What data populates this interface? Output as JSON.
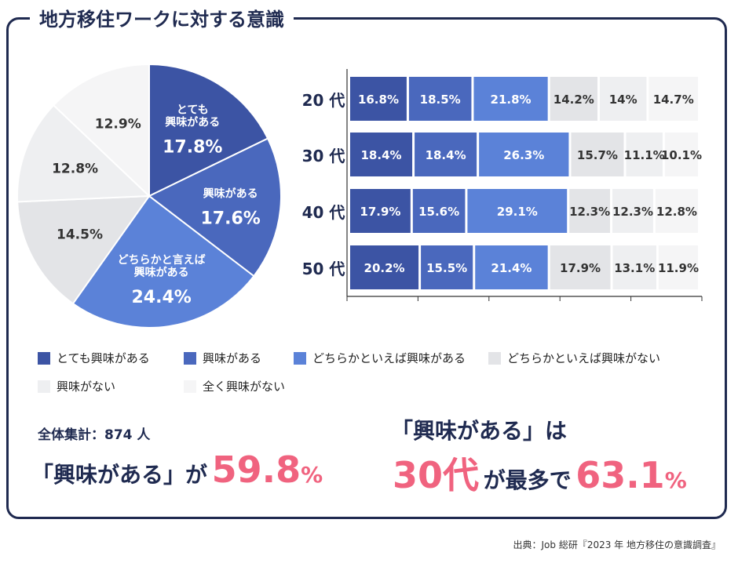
{
  "title": "地方移住ワークに対する意識",
  "colors": {
    "very_interested": "#3c54a4",
    "interested": "#4a68bd",
    "somewhat_interested": "#5b82d8",
    "somewhat_not": "#e3e4e7",
    "not_interested": "#eeeff1",
    "not_at_all": "#f5f5f6",
    "navy": "#1f2a50",
    "pink": "#f0637f"
  },
  "chart_data": [
    {
      "type": "pie",
      "title": "",
      "slices": [
        {
          "label": "とても興味がある",
          "value": 17.8,
          "value_label": "17.8%",
          "label_lines": [
            "とても",
            "興味がある"
          ],
          "color_key": "very_interested"
        },
        {
          "label": "興味がある",
          "value": 17.6,
          "value_label": "17.6%",
          "label_lines": [
            "興味がある"
          ],
          "color_key": "interested"
        },
        {
          "label": "どちらかと言えば興味がある",
          "value": 24.4,
          "value_label": "24.4%",
          "label_lines": [
            "どちらかと言えば",
            "興味がある"
          ],
          "color_key": "somewhat_interested"
        },
        {
          "label": "どちらかといえば興味がない",
          "value": 14.5,
          "value_label": "14.5%",
          "label_lines": [],
          "color_key": "somewhat_not"
        },
        {
          "label": "興味がない",
          "value": 12.8,
          "value_label": "12.8%",
          "label_lines": [],
          "color_key": "not_interested"
        },
        {
          "label": "全く興味がない",
          "value": 12.9,
          "value_label": "12.9%",
          "label_lines": [],
          "color_key": "not_at_all"
        }
      ]
    },
    {
      "type": "bar",
      "orientation": "horizontal",
      "stacked": true,
      "categories": [
        "20 代",
        "30 代",
        "40 代",
        "50 代"
      ],
      "series": [
        {
          "name": "とても興味がある",
          "color_key": "very_interested",
          "values": [
            16.8,
            18.4,
            17.9,
            20.2
          ],
          "labels": [
            "16.8%",
            "18.4%",
            "17.9%",
            "20.2%"
          ]
        },
        {
          "name": "興味がある",
          "color_key": "interested",
          "values": [
            18.5,
            18.4,
            15.6,
            15.5
          ],
          "labels": [
            "18.5%",
            "18.4%",
            "15.6%",
            "15.5%"
          ]
        },
        {
          "name": "どちらかといえば興味がある",
          "color_key": "somewhat_interested",
          "values": [
            21.8,
            26.3,
            29.1,
            21.4
          ],
          "labels": [
            "21.8%",
            "26.3%",
            "29.1%",
            "21.4%"
          ]
        },
        {
          "name": "どちらかといえば興味がない",
          "color_key": "somewhat_not",
          "values": [
            14.2,
            15.7,
            12.3,
            17.9
          ],
          "labels": [
            "14.2%",
            "15.7%",
            "12.3%",
            "17.9%"
          ]
        },
        {
          "name": "興味がない",
          "color_key": "not_interested",
          "values": [
            14,
            11.1,
            12.3,
            13.1
          ],
          "labels": [
            "14%",
            "11.1%",
            "12.3%",
            "13.1%"
          ]
        },
        {
          "name": "全く興味がない",
          "color_key": "not_at_all",
          "values": [
            14.7,
            10.1,
            12.8,
            11.9
          ],
          "labels": [
            "14.7%",
            "10.1%",
            "12.8%",
            "11.9%"
          ]
        }
      ],
      "xlim": [
        0,
        100
      ]
    }
  ],
  "legend": [
    {
      "label": "とても興味がある",
      "color_key": "very_interested"
    },
    {
      "label": "興味がある",
      "color_key": "interested"
    },
    {
      "label": "どちらかといえば興味がある",
      "color_key": "somewhat_interested"
    },
    {
      "label": "どちらかといえば興味がない",
      "color_key": "somewhat_not"
    },
    {
      "label": "興味がない",
      "color_key": "not_interested"
    },
    {
      "label": "全く興味がない",
      "color_key": "not_at_all"
    }
  ],
  "summary": {
    "total_label": "全体集計：874 人",
    "left_prefix": "「興味がある」が",
    "left_value": "59.8",
    "left_unit": "%",
    "right_line1": "「興味がある」は",
    "right_highlight": "30代",
    "right_middle": "が最多で",
    "right_value": "63.1",
    "right_unit": "%"
  },
  "source": "出典：Job 総研『2023 年 地方移住の意識調査』"
}
